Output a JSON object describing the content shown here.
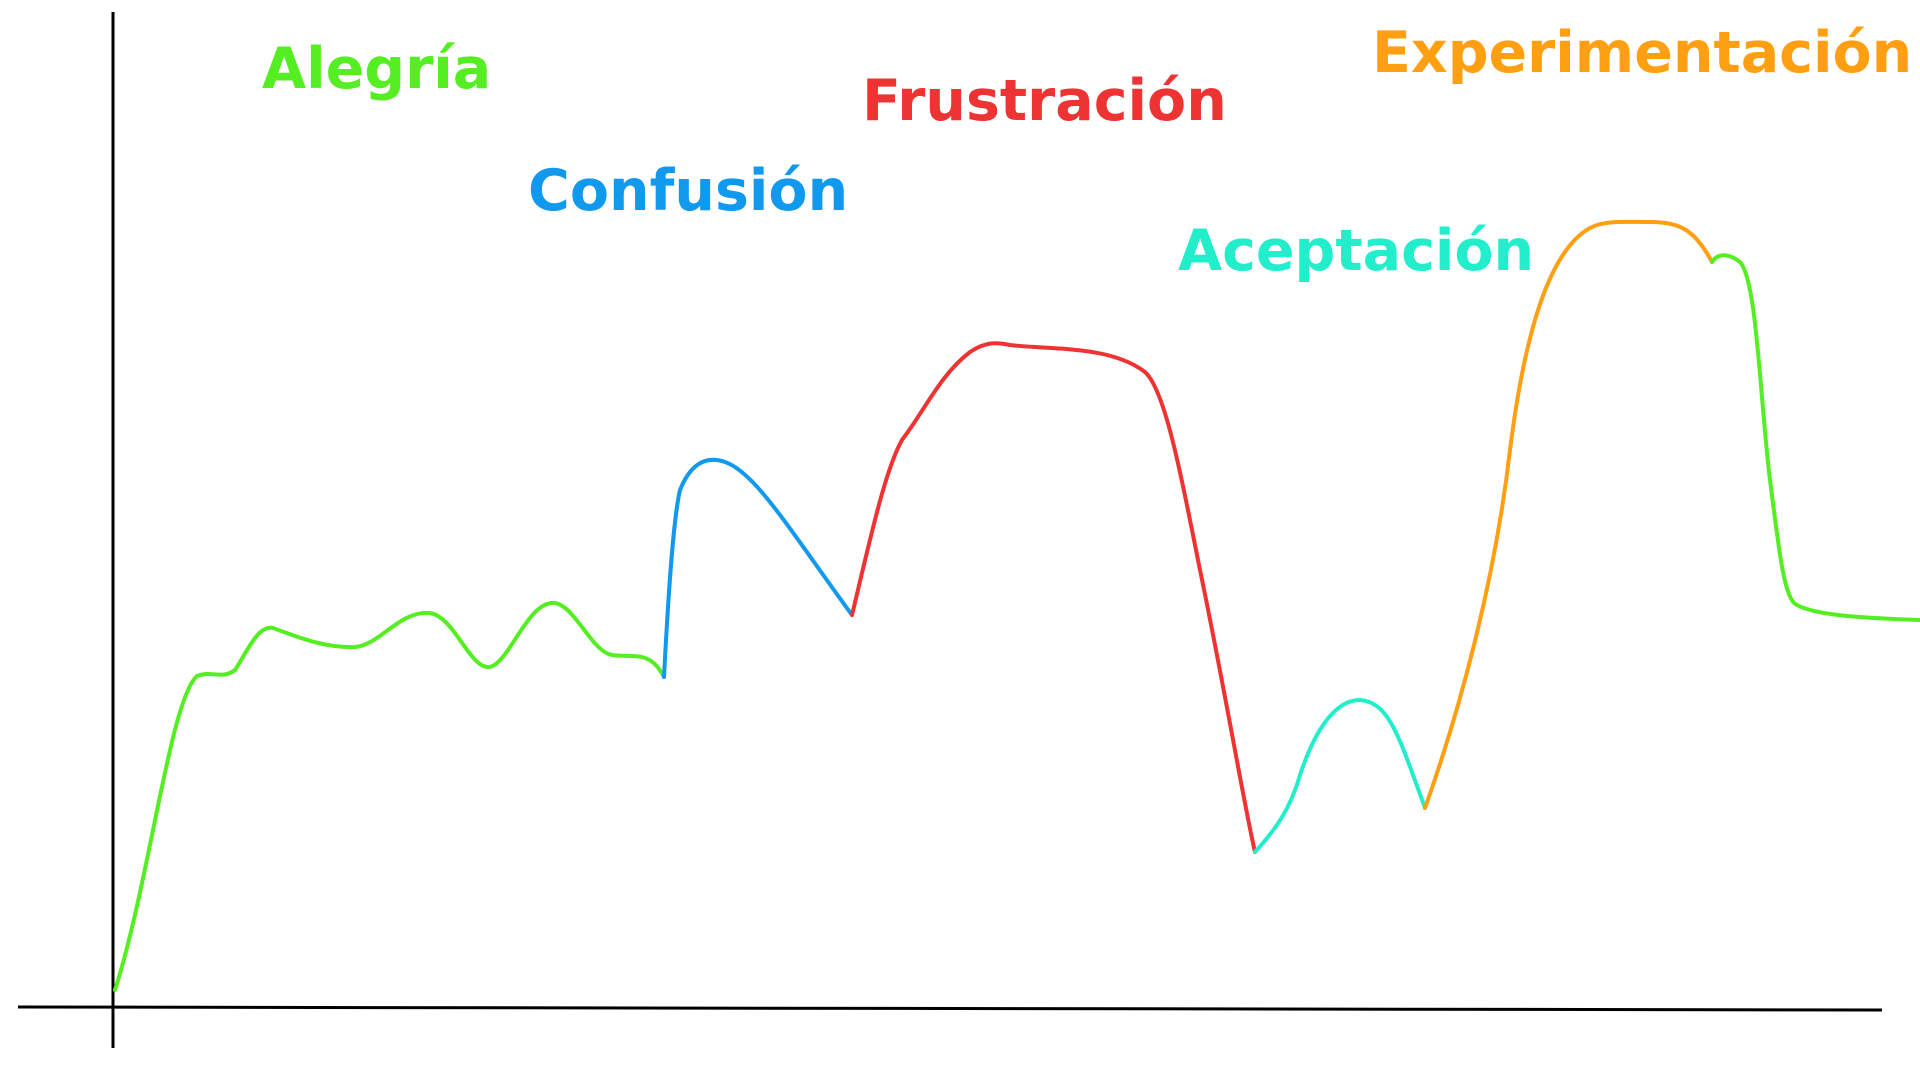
{
  "stages": [
    {
      "key": "alegria",
      "label": "Alegría",
      "color": "#55ee22"
    },
    {
      "key": "confusion",
      "label": "Confusión",
      "color": "#1199ee"
    },
    {
      "key": "frustracion",
      "label": "Frustración",
      "color": "#ee3333"
    },
    {
      "key": "aceptacion",
      "label": "Aceptación",
      "color": "#22eecc"
    },
    {
      "key": "experimentacion",
      "label": "Experimentación",
      "color": "#ff9f11"
    }
  ]
}
